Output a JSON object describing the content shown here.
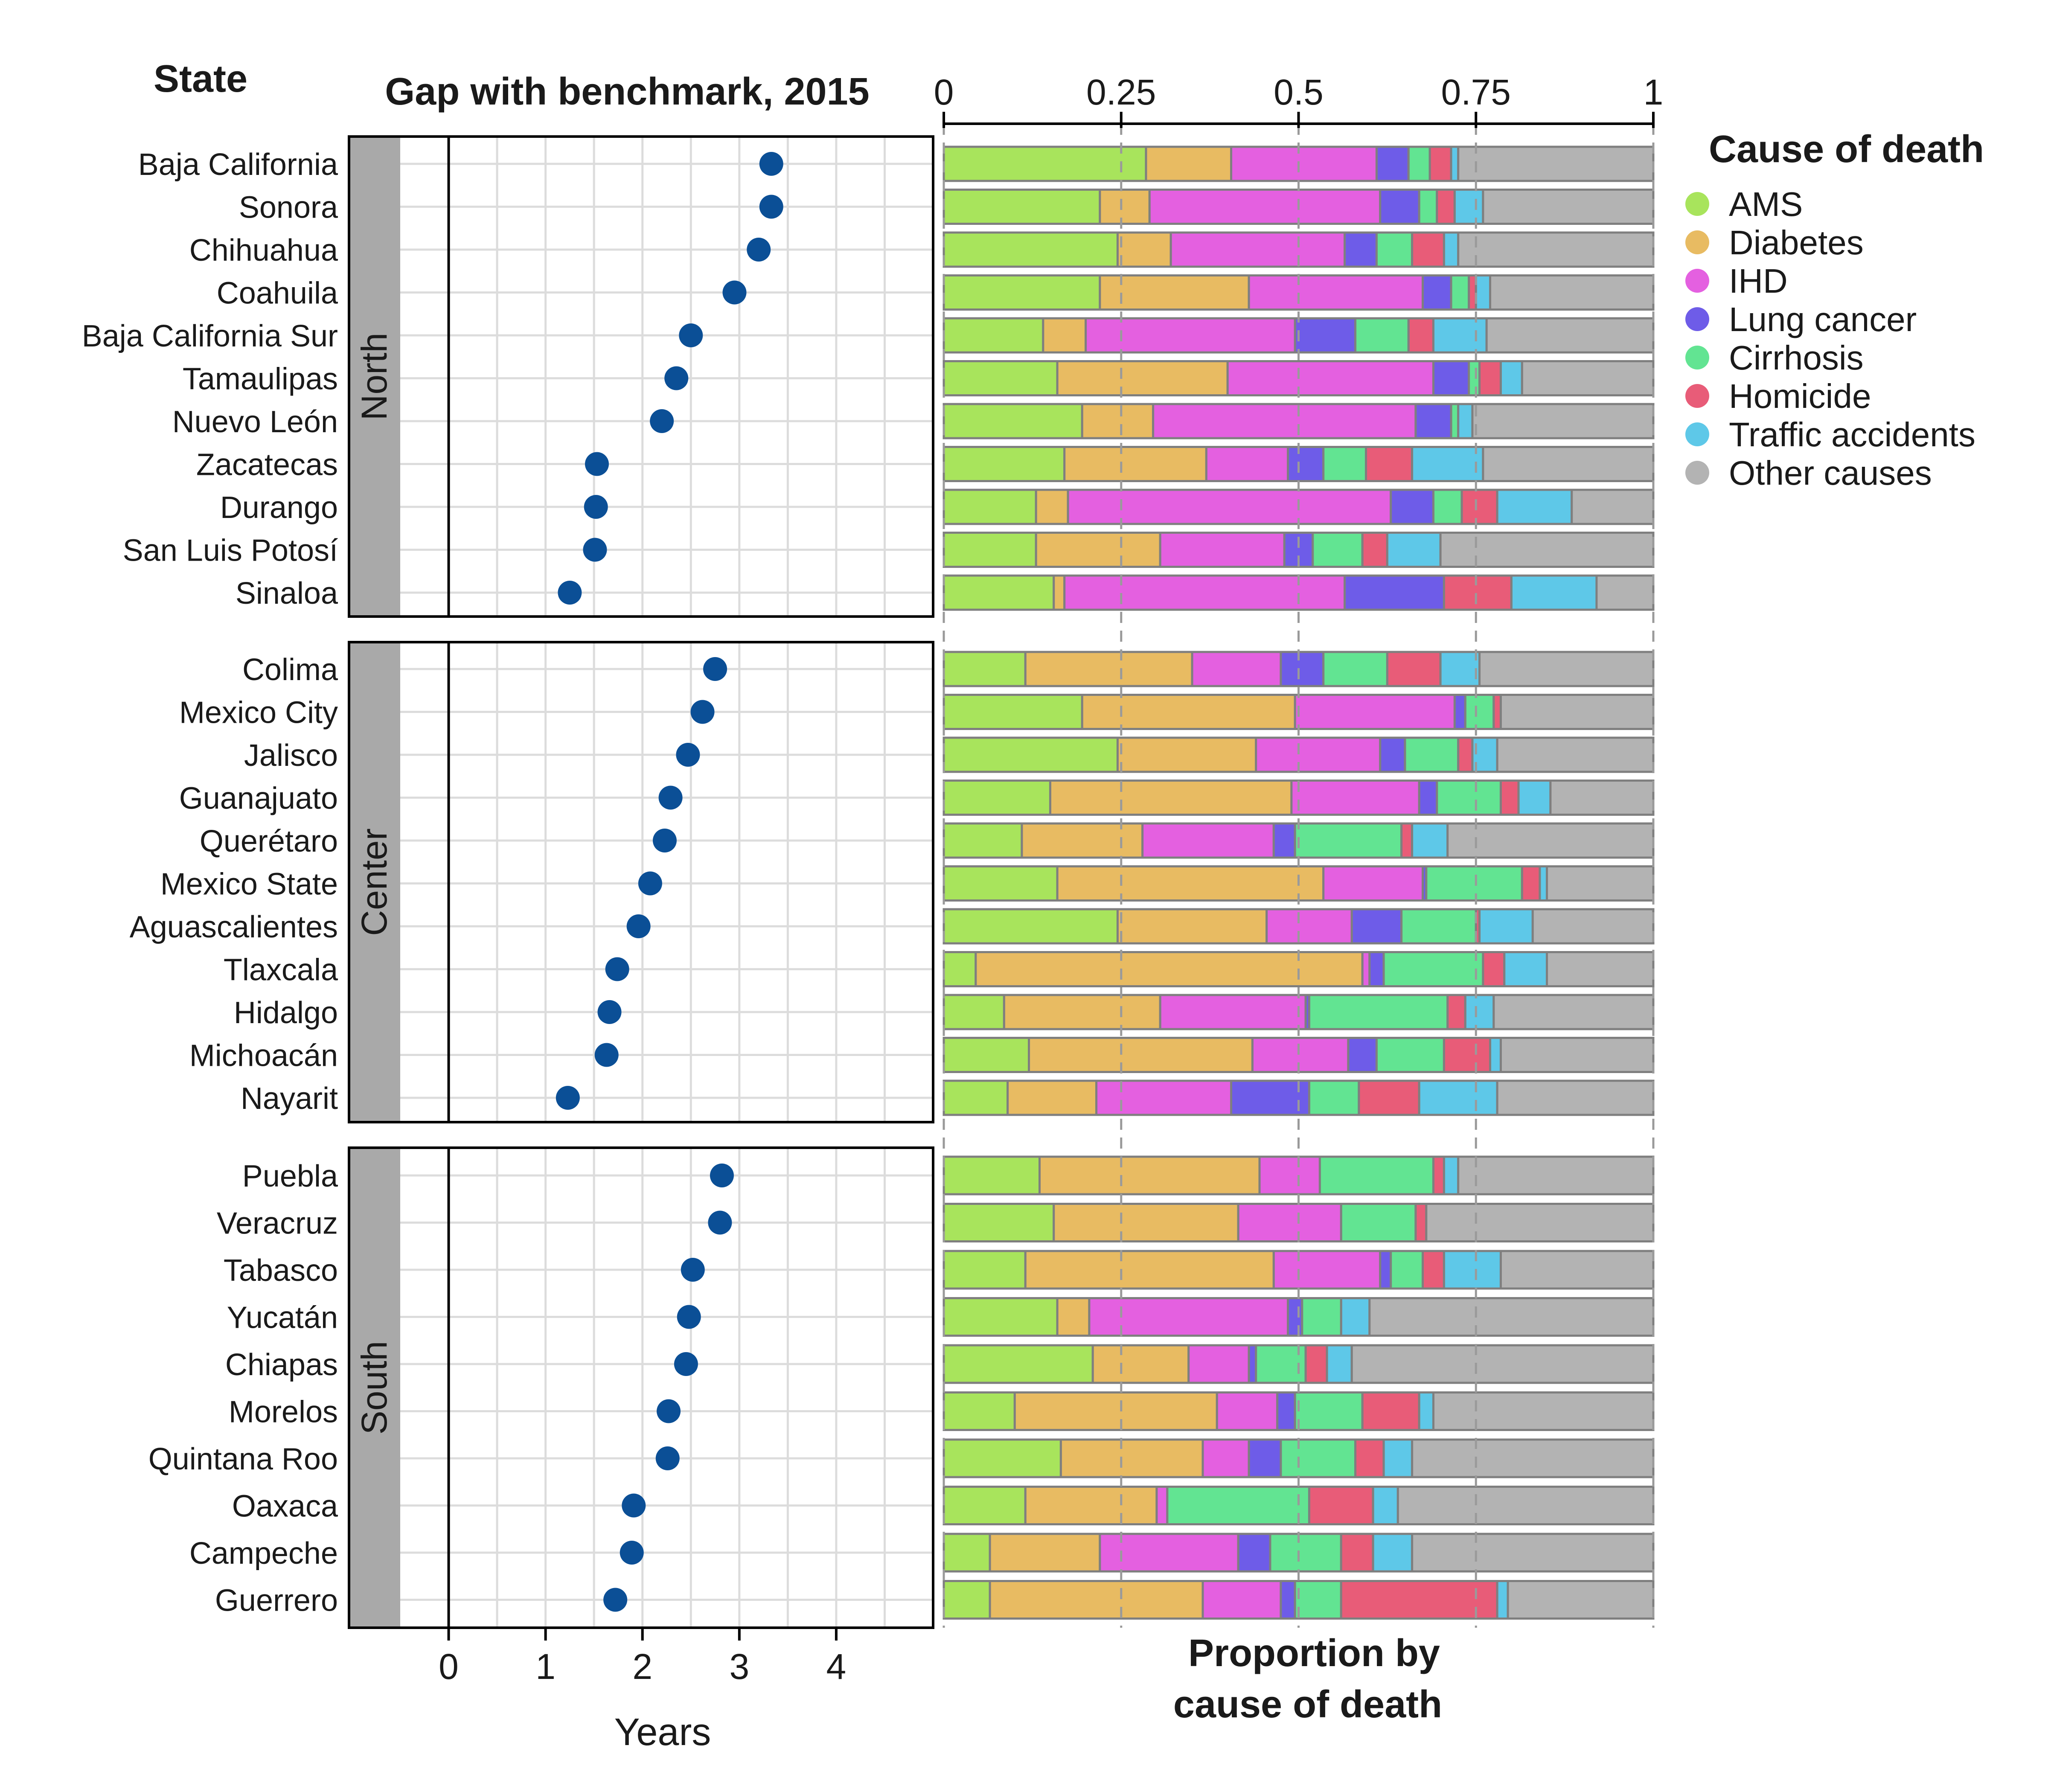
{
  "chart_data": [
    {
      "type": "scatter",
      "title": "Gap with benchmark, 2015",
      "row_header": "State",
      "xlabel": "Years",
      "xlim": [
        -0.5,
        5.0
      ],
      "xticks": [
        0,
        1,
        2,
        3,
        4
      ],
      "point_color": "#0b4f96",
      "grid": true,
      "regions": [
        {
          "name": "North",
          "states": [
            "Baja California",
            "Sonora",
            "Chihuahua",
            "Coahuila",
            "Baja California Sur",
            "Tamaulipas",
            "Nuevo León",
            "Zacatecas",
            "Durango",
            "San Luis Potosí",
            "Sinaloa"
          ],
          "values": [
            3.33,
            3.33,
            3.2,
            2.95,
            2.5,
            2.35,
            2.2,
            1.53,
            1.52,
            1.51,
            1.25
          ]
        },
        {
          "name": "Center",
          "states": [
            "Colima",
            "Mexico City",
            "Jalisco",
            "Guanajuato",
            "Querétaro",
            "Mexico State",
            "Aguascalientes",
            "Tlaxcala",
            "Hidalgo",
            "Michoacán",
            "Nayarit"
          ],
          "values": [
            2.75,
            2.62,
            2.47,
            2.29,
            2.23,
            2.08,
            1.96,
            1.74,
            1.66,
            1.63,
            1.23
          ]
        },
        {
          "name": "South",
          "states": [
            "Puebla",
            "Veracruz",
            "Tabasco",
            "Yucatán",
            "Chiapas",
            "Morelos",
            "Quintana Roo",
            "Oaxaca",
            "Campeche",
            "Guerrero"
          ],
          "values": [
            2.82,
            2.8,
            2.52,
            2.48,
            2.45,
            2.27,
            2.26,
            1.91,
            1.89,
            1.72
          ]
        }
      ]
    },
    {
      "type": "bar",
      "stacked": true,
      "orientation": "horizontal",
      "xlabel": "Proportion  by cause of death",
      "xlabel_lines": [
        "Proportion  by",
        "cause of death"
      ],
      "xlim": [
        0,
        1
      ],
      "xticks": [
        0,
        0.25,
        0.5,
        0.75,
        1
      ],
      "xtick_labels": [
        "0",
        "0.25",
        "0.5",
        "0.75",
        "1"
      ],
      "legend_title": "Cause of death",
      "legend_position": "right",
      "series": [
        {
          "name": "AMS",
          "color": "#a8e45c"
        },
        {
          "name": "Diabetes",
          "color": "#e8bb62"
        },
        {
          "name": "IHD",
          "color": "#e460e0"
        },
        {
          "name": "Lung cancer",
          "color": "#6e5ce8"
        },
        {
          "name": "Cirrhosis",
          "color": "#62e492"
        },
        {
          "name": "Homicide",
          "color": "#e85c78"
        },
        {
          "name": "Traffic accidents",
          "color": "#5ec8e8"
        },
        {
          "name": "Other causes",
          "color": "#b3b3b3"
        }
      ],
      "regions": [
        {
          "name": "North",
          "states": [
            "Baja California",
            "Sonora",
            "Chihuahua",
            "Coahuila",
            "Baja California Sur",
            "Tamaulipas",
            "Nuevo León",
            "Zacatecas",
            "Durango",
            "San Luis Potosí",
            "Sinaloa"
          ],
          "values": [
            [
              0.285,
              0.12,
              0.205,
              0.045,
              0.03,
              0.03,
              0.01,
              0.275
            ],
            [
              0.22,
              0.07,
              0.325,
              0.055,
              0.025,
              0.025,
              0.04,
              0.24
            ],
            [
              0.245,
              0.075,
              0.245,
              0.045,
              0.05,
              0.045,
              0.02,
              0.275
            ],
            [
              0.22,
              0.21,
              0.245,
              0.04,
              0.025,
              0.01,
              0.02,
              0.23
            ],
            [
              0.14,
              0.06,
              0.295,
              0.085,
              0.075,
              0.035,
              0.075,
              0.235
            ],
            [
              0.16,
              0.24,
              0.29,
              0.05,
              0.015,
              0.03,
              0.03,
              0.185
            ],
            [
              0.195,
              0.1,
              0.37,
              0.05,
              0.01,
              0.0,
              0.02,
              0.255
            ],
            [
              0.17,
              0.2,
              0.115,
              0.05,
              0.06,
              0.065,
              0.1,
              0.24
            ],
            [
              0.13,
              0.045,
              0.455,
              0.06,
              0.04,
              0.05,
              0.105,
              0.115
            ],
            [
              0.13,
              0.175,
              0.175,
              0.04,
              0.07,
              0.035,
              0.075,
              0.3
            ],
            [
              0.155,
              0.015,
              0.395,
              0.14,
              0.0,
              0.095,
              0.12,
              0.08
            ]
          ]
        },
        {
          "name": "Center",
          "states": [
            "Colima",
            "Mexico City",
            "Jalisco",
            "Guanajuato",
            "Querétaro",
            "Mexico State",
            "Aguascalientes",
            "Tlaxcala",
            "Hidalgo",
            "Michoacán",
            "Nayarit"
          ],
          "values": [
            [
              0.115,
              0.235,
              0.125,
              0.06,
              0.09,
              0.075,
              0.055,
              0.245
            ],
            [
              0.195,
              0.3,
              0.225,
              0.015,
              0.04,
              0.01,
              0.0,
              0.215
            ],
            [
              0.245,
              0.195,
              0.175,
              0.035,
              0.075,
              0.02,
              0.035,
              0.22
            ],
            [
              0.15,
              0.34,
              0.18,
              0.025,
              0.09,
              0.025,
              0.045,
              0.145
            ],
            [
              0.11,
              0.17,
              0.185,
              0.03,
              0.15,
              0.015,
              0.05,
              0.29
            ],
            [
              0.16,
              0.375,
              0.14,
              0.005,
              0.135,
              0.025,
              0.01,
              0.15
            ],
            [
              0.245,
              0.21,
              0.12,
              0.07,
              0.105,
              0.005,
              0.075,
              0.17
            ],
            [
              0.045,
              0.545,
              0.01,
              0.02,
              0.14,
              0.03,
              0.06,
              0.15
            ],
            [
              0.085,
              0.22,
              0.205,
              0.005,
              0.195,
              0.025,
              0.04,
              0.225
            ],
            [
              0.12,
              0.315,
              0.135,
              0.04,
              0.095,
              0.065,
              0.015,
              0.215
            ],
            [
              0.09,
              0.125,
              0.19,
              0.11,
              0.07,
              0.085,
              0.11,
              0.22
            ]
          ]
        },
        {
          "name": "South",
          "states": [
            "Puebla",
            "Veracruz",
            "Tabasco",
            "Yucatán",
            "Chiapas",
            "Morelos",
            "Quintana Roo",
            "Oaxaca",
            "Campeche",
            "Guerrero"
          ],
          "values": [
            [
              0.135,
              0.31,
              0.085,
              0.0,
              0.16,
              0.015,
              0.02,
              0.275
            ],
            [
              0.155,
              0.26,
              0.145,
              0.0,
              0.105,
              0.015,
              0.0,
              0.32
            ],
            [
              0.115,
              0.35,
              0.15,
              0.015,
              0.045,
              0.03,
              0.08,
              0.215
            ],
            [
              0.16,
              0.045,
              0.28,
              0.02,
              0.055,
              0.0,
              0.04,
              0.4
            ],
            [
              0.21,
              0.135,
              0.085,
              0.01,
              0.07,
              0.03,
              0.035,
              0.425
            ],
            [
              0.1,
              0.285,
              0.085,
              0.025,
              0.095,
              0.08,
              0.02,
              0.31
            ],
            [
              0.165,
              0.2,
              0.065,
              0.045,
              0.105,
              0.04,
              0.04,
              0.34
            ],
            [
              0.115,
              0.185,
              0.015,
              0.0,
              0.2,
              0.09,
              0.035,
              0.36
            ],
            [
              0.065,
              0.155,
              0.195,
              0.045,
              0.1,
              0.045,
              0.055,
              0.34
            ],
            [
              0.065,
              0.3,
              0.11,
              0.02,
              0.065,
              0.22,
              0.015,
              0.205
            ]
          ]
        }
      ]
    }
  ]
}
